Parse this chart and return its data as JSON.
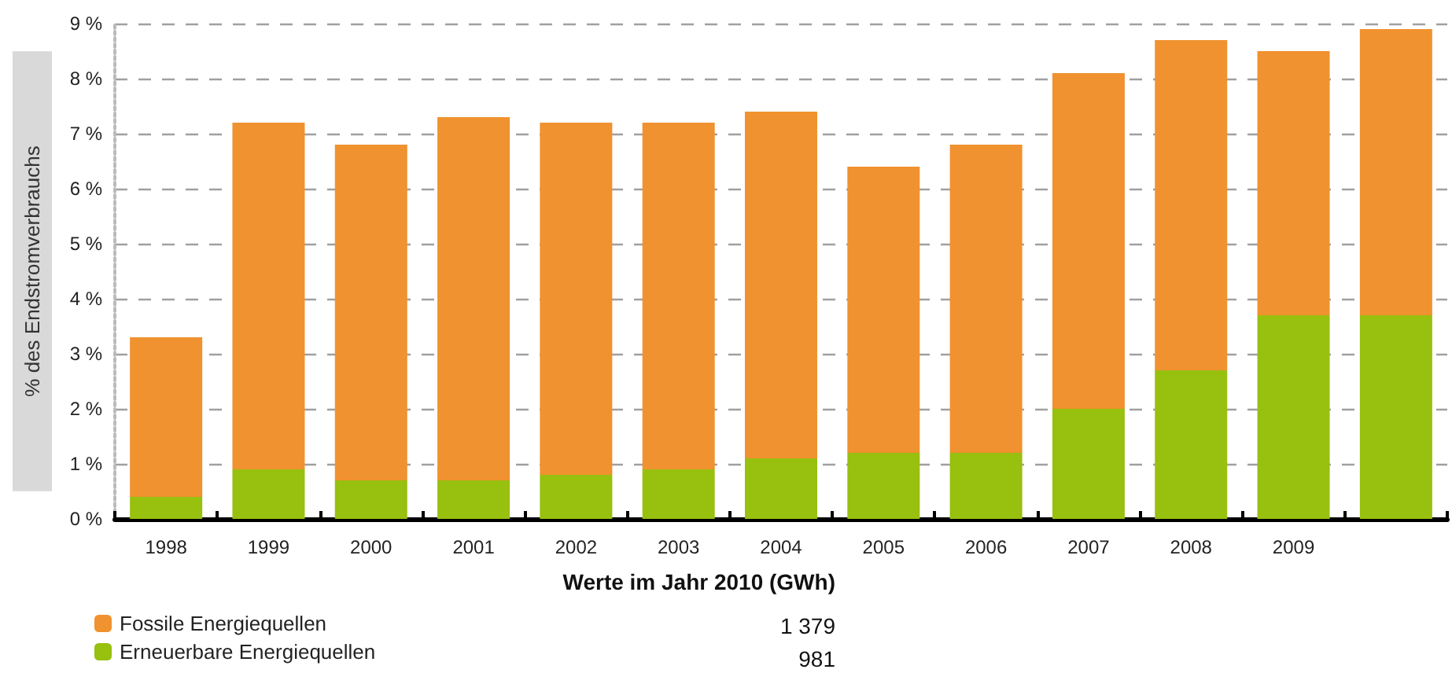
{
  "chart_data": {
    "type": "bar",
    "stacked": true,
    "ylabel": "% des Endstromverbrauchs",
    "categories": [
      "1998",
      "1999",
      "2000",
      "2001",
      "2002",
      "2003",
      "2004",
      "2005",
      "2006",
      "2007",
      "2008",
      "2009",
      null
    ],
    "series": [
      {
        "name": "Erneuerbare Energiequellen",
        "color": "#97c00f",
        "values": [
          0.4,
          0.9,
          0.7,
          0.7,
          0.8,
          0.9,
          1.1,
          1.2,
          1.2,
          2.0,
          2.7,
          3.7,
          3.7
        ]
      },
      {
        "name": "Fossile Energiequellen",
        "color": "#f0922f",
        "values": [
          2.9,
          6.3,
          6.1,
          6.6,
          6.4,
          6.3,
          6.3,
          5.2,
          5.6,
          6.1,
          6.0,
          4.8,
          5.2
        ]
      }
    ],
    "ylim": [
      0,
      9
    ],
    "yticks": [
      {
        "value": 0,
        "label": "0 %"
      },
      {
        "value": 1,
        "label": "1 %"
      },
      {
        "value": 2,
        "label": "2 %"
      },
      {
        "value": 3,
        "label": "3 %"
      },
      {
        "value": 4,
        "label": "4 %"
      },
      {
        "value": 5,
        "label": "5 %"
      },
      {
        "value": 6,
        "label": "6 %"
      },
      {
        "value": 7,
        "label": "7 %"
      },
      {
        "value": 8,
        "label": "8 %"
      },
      {
        "value": 9,
        "label": "9 %"
      }
    ],
    "grid": "y",
    "legend": "bottom left",
    "annotations": [
      "Werte im Jahr 2010 (GWh)",
      "1 379",
      "981"
    ]
  }
}
